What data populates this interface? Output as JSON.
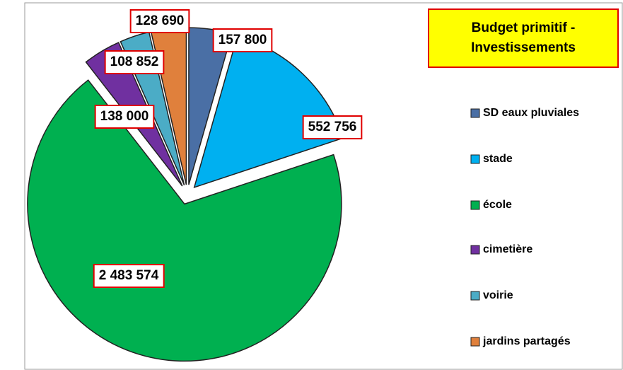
{
  "chart_data": {
    "type": "pie",
    "title": "Budget primitif - Investissements",
    "categories": [
      "SD eaux pluviales",
      "stade",
      "école",
      "cimetière",
      "voirie",
      "jardins partagés"
    ],
    "values": [
      157800,
      552756,
      2483574,
      138000,
      108852,
      128690
    ],
    "value_labels": [
      "157 800",
      "552 756",
      "2 483 574",
      "138 000",
      "108 852",
      "128 690"
    ],
    "colors": [
      "#4a6fa5",
      "#00b0f0",
      "#00b050",
      "#7030a0",
      "#4bacc6",
      "#e0803c"
    ],
    "legend": "right"
  }
}
